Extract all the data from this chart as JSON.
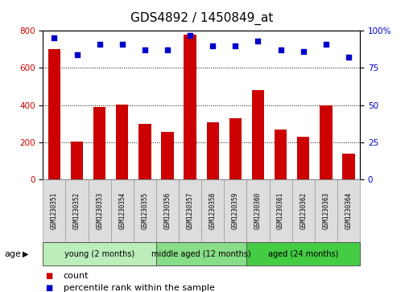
{
  "title": "GDS4892 / 1450849_at",
  "samples": [
    "GSM1230351",
    "GSM1230352",
    "GSM1230353",
    "GSM1230354",
    "GSM1230355",
    "GSM1230356",
    "GSM1230357",
    "GSM1230358",
    "GSM1230359",
    "GSM1230360",
    "GSM1230361",
    "GSM1230362",
    "GSM1230363",
    "GSM1230364"
  ],
  "counts": [
    700,
    205,
    390,
    405,
    300,
    255,
    780,
    310,
    330,
    480,
    270,
    230,
    400,
    140
  ],
  "percentiles": [
    95,
    84,
    91,
    91,
    87,
    87,
    97,
    90,
    90,
    93,
    87,
    86,
    91,
    82
  ],
  "bar_color": "#cc0000",
  "dot_color": "#0000cc",
  "ylim_left": [
    0,
    800
  ],
  "ylim_right": [
    0,
    100
  ],
  "yticks_left": [
    0,
    200,
    400,
    600,
    800
  ],
  "yticks_right": [
    0,
    25,
    50,
    75,
    100
  ],
  "grid_color": "#000000",
  "bg_color": "#ffffff",
  "plot_bg": "#ffffff",
  "groups": [
    {
      "label": "young (2 months)",
      "start": 0,
      "end": 5,
      "color": "#bbeebb"
    },
    {
      "label": "middle aged (12 months)",
      "start": 5,
      "end": 9,
      "color": "#88dd88"
    },
    {
      "label": "aged (24 months)",
      "start": 9,
      "end": 14,
      "color": "#44cc44"
    }
  ],
  "age_label": "age",
  "legend_count_label": "count",
  "legend_pct_label": "percentile rank within the sample",
  "title_fontsize": 11,
  "tick_fontsize": 7.5,
  "sample_fontsize": 5.5,
  "group_fontsize": 7,
  "legend_fontsize": 8
}
